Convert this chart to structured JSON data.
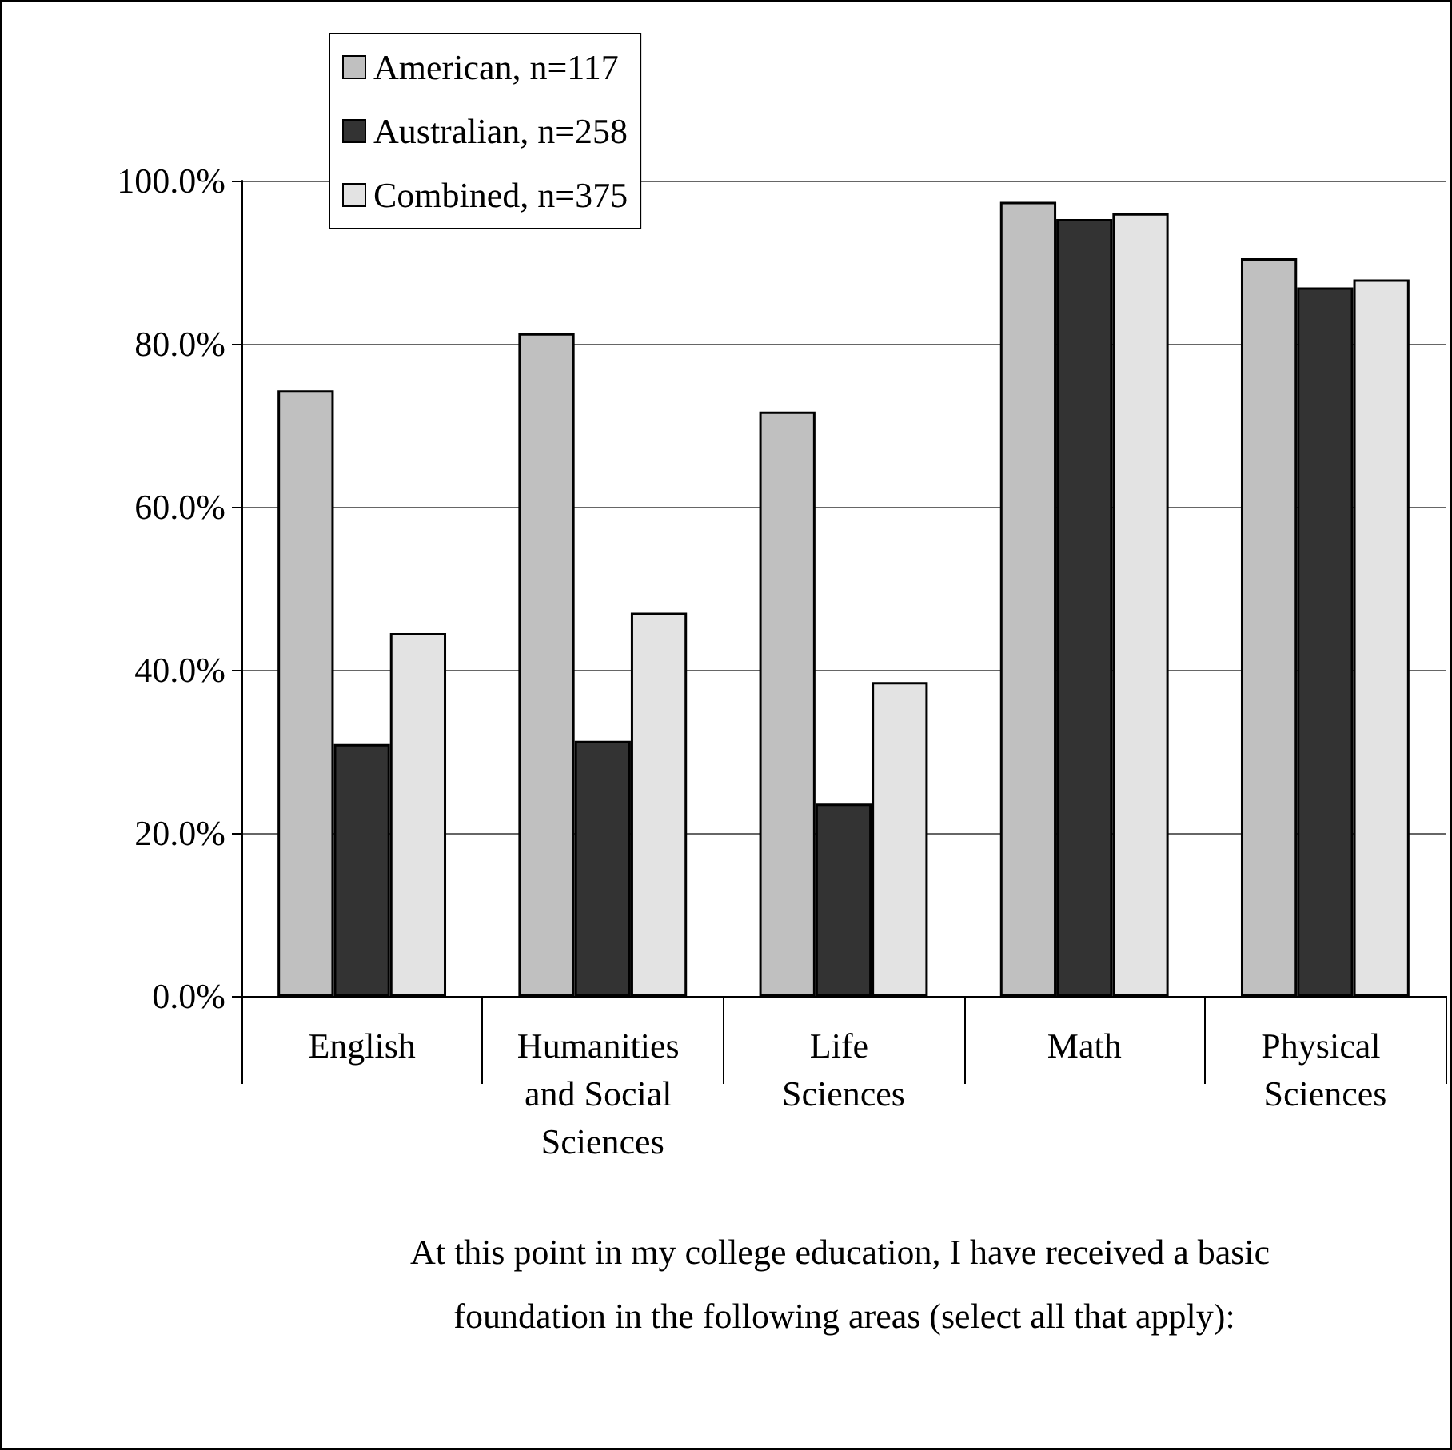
{
  "chart_data": {
    "type": "bar",
    "xlabel": "At this point in my college education, I have received a basic foundation in the following areas (select all that apply):",
    "categories": [
      "English",
      "Humanities and Social Sciences",
      "Life Sciences",
      "Math",
      "Physical Sciences"
    ],
    "series": [
      {
        "name": "American, n=117",
        "color": "#c0c0c0",
        "values": [
          74.3,
          81.3,
          71.7,
          97.4,
          90.5
        ]
      },
      {
        "name": "Australian, n=258",
        "color": "#333333",
        "values": [
          30.9,
          31.3,
          23.6,
          95.3,
          86.9
        ]
      },
      {
        "name": "Combined, n=375",
        "color": "#e3e3e3",
        "values": [
          44.5,
          47.0,
          38.5,
          96.0,
          87.9
        ]
      }
    ],
    "ylim": [
      0,
      100
    ],
    "yticks": [
      {
        "value": 0,
        "label": "0.0%"
      },
      {
        "value": 20,
        "label": "20.0%"
      },
      {
        "value": 40,
        "label": "40.0%"
      },
      {
        "value": 60,
        "label": "60.0%"
      },
      {
        "value": 80,
        "label": "80.0%"
      },
      {
        "value": 100,
        "label": "100.0%"
      }
    ],
    "grid": "y",
    "legend": "top left"
  }
}
